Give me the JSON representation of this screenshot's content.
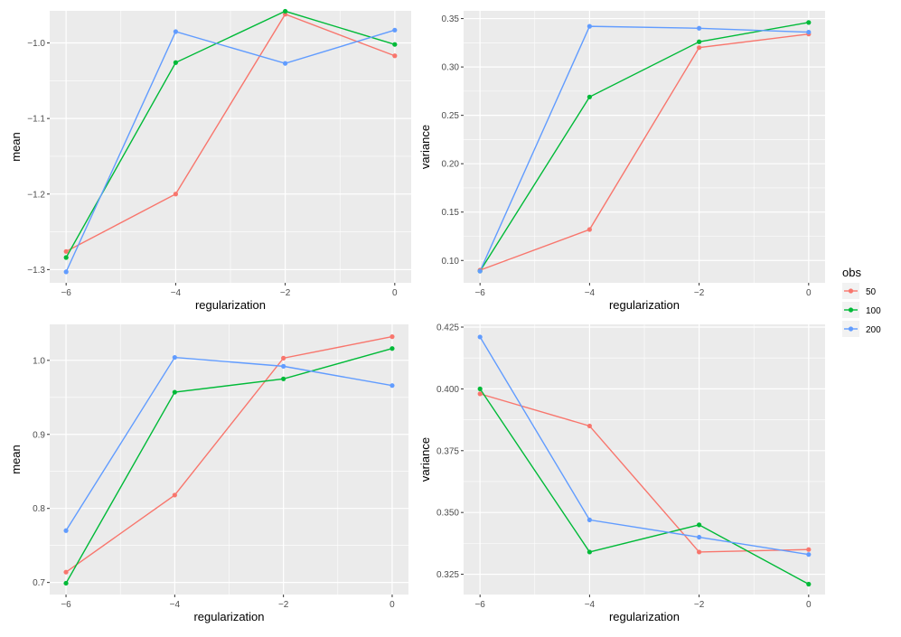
{
  "legend": {
    "title": "obs",
    "entries": [
      {
        "label": "50",
        "color": "#F8766D"
      },
      {
        "label": "100",
        "color": "#00BA38"
      },
      {
        "label": "200",
        "color": "#619CFF"
      }
    ]
  },
  "chart_data": [
    {
      "type": "line",
      "xlabel": "regularization",
      "ylabel": "mean",
      "x": [
        -6,
        -4,
        -2,
        0
      ],
      "xticks": [
        -6,
        -4,
        -2,
        0
      ],
      "xtick_labels": [
        "−6",
        "−4",
        "−2",
        "0"
      ],
      "xlim": [
        -6.3,
        0.3
      ],
      "ylim": [
        -1.3175,
        -0.9575
      ],
      "yticks": [
        -1.3,
        -1.2,
        -1.1,
        -1.0
      ],
      "ytick_labels": [
        "−1.3",
        "−1.2",
        "−1.1",
        "−1.0"
      ],
      "series": [
        {
          "name": "50",
          "color": "#F8766D",
          "values": [
            -1.276,
            -1.2,
            -0.962,
            -1.017
          ]
        },
        {
          "name": "100",
          "color": "#00BA38",
          "values": [
            -1.284,
            -1.026,
            -0.958,
            -1.002
          ]
        },
        {
          "name": "200",
          "color": "#619CFF",
          "values": [
            -1.303,
            -0.985,
            -1.027,
            -0.983
          ]
        }
      ]
    },
    {
      "type": "line",
      "xlabel": "regularization",
      "ylabel": "variance",
      "x": [
        -6,
        -4,
        -2,
        0
      ],
      "xticks": [
        -6,
        -4,
        -2,
        0
      ],
      "xtick_labels": [
        "−6",
        "−4",
        "−2",
        "0"
      ],
      "xlim": [
        -6.3,
        0.3
      ],
      "ylim": [
        0.0769,
        0.358
      ],
      "yticks": [
        0.1,
        0.15,
        0.2,
        0.25,
        0.3,
        0.35
      ],
      "ytick_labels": [
        "0.10",
        "0.15",
        "0.20",
        "0.25",
        "0.30",
        "0.35"
      ],
      "series": [
        {
          "name": "50",
          "color": "#F8766D",
          "values": [
            0.09,
            0.132,
            0.32,
            0.334
          ]
        },
        {
          "name": "100",
          "color": "#00BA38",
          "values": [
            0.089,
            0.269,
            0.326,
            0.346
          ]
        },
        {
          "name": "200",
          "color": "#619CFF",
          "values": [
            0.089,
            0.342,
            0.34,
            0.336
          ]
        }
      ]
    },
    {
      "type": "line",
      "xlabel": "regularization",
      "ylabel": "mean",
      "x": [
        -6,
        -4,
        -2,
        0
      ],
      "xticks": [
        -6,
        -4,
        -2,
        0
      ],
      "xtick_labels": [
        "−6",
        "−4",
        "−2",
        "0"
      ],
      "xlim": [
        -6.3,
        0.3
      ],
      "ylim": [
        0.6837,
        1.0486
      ],
      "yticks": [
        0.7,
        0.8,
        0.9,
        1.0
      ],
      "ytick_labels": [
        "0.7",
        "0.8",
        "0.9",
        "1.0"
      ],
      "series": [
        {
          "name": "50",
          "color": "#F8766D",
          "values": [
            0.714,
            0.818,
            1.003,
            1.032
          ]
        },
        {
          "name": "100",
          "color": "#00BA38",
          "values": [
            0.699,
            0.957,
            0.975,
            1.016
          ]
        },
        {
          "name": "200",
          "color": "#619CFF",
          "values": [
            0.77,
            1.004,
            0.992,
            0.966
          ]
        }
      ]
    },
    {
      "type": "line",
      "xlabel": "regularization",
      "ylabel": "variance",
      "x": [
        -6,
        -4,
        -2,
        0
      ],
      "xticks": [
        -6,
        -4,
        -2,
        0
      ],
      "xtick_labels": [
        "−6",
        "−4",
        "−2",
        "0"
      ],
      "xlim": [
        -6.3,
        0.3
      ],
      "ylim": [
        0.3168,
        0.4261
      ],
      "yticks": [
        0.325,
        0.35,
        0.375,
        0.4,
        0.425
      ],
      "ytick_labels": [
        "0.325",
        "0.350",
        "0.375",
        "0.400",
        "0.425"
      ],
      "series": [
        {
          "name": "50",
          "color": "#F8766D",
          "values": [
            0.398,
            0.385,
            0.334,
            0.335
          ]
        },
        {
          "name": "100",
          "color": "#00BA38",
          "values": [
            0.4,
            0.334,
            0.345,
            0.321
          ]
        },
        {
          "name": "200",
          "color": "#619CFF",
          "values": [
            0.421,
            0.347,
            0.34,
            0.333
          ]
        }
      ]
    }
  ]
}
